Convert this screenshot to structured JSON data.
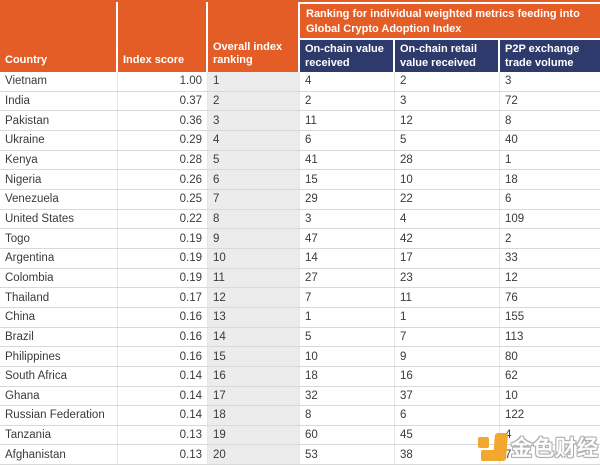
{
  "colors": {
    "header_orange": "#E55D26",
    "header_navy": "#2D3A6B",
    "rank_column_bg": "#ECECEC",
    "watermark_orange": "#F2A21F"
  },
  "table": {
    "header": {
      "country": "Country",
      "index_score": "Index score",
      "overall_ranking": "Overall index ranking",
      "metrics_group": "Ranking for individual weighted metrics feeding into Global Crypto Adoption Index",
      "on_chain_value": "On-chain value received",
      "on_chain_retail": "On-chain retail value received",
      "p2p_volume": "P2P exchange trade volume"
    },
    "rows": [
      {
        "country": "Vietnam",
        "score": "1.00",
        "rank": "1",
        "on_chain_value": "4",
        "on_chain_retail": "2",
        "p2p": "3"
      },
      {
        "country": "India",
        "score": "0.37",
        "rank": "2",
        "on_chain_value": "2",
        "on_chain_retail": "3",
        "p2p": "72"
      },
      {
        "country": "Pakistan",
        "score": "0.36",
        "rank": "3",
        "on_chain_value": "11",
        "on_chain_retail": "12",
        "p2p": "8"
      },
      {
        "country": "Ukraine",
        "score": "0.29",
        "rank": "4",
        "on_chain_value": "6",
        "on_chain_retail": "5",
        "p2p": "40"
      },
      {
        "country": "Kenya",
        "score": "0.28",
        "rank": "5",
        "on_chain_value": "41",
        "on_chain_retail": "28",
        "p2p": "1"
      },
      {
        "country": "Nigeria",
        "score": "0.26",
        "rank": "6",
        "on_chain_value": "15",
        "on_chain_retail": "10",
        "p2p": "18"
      },
      {
        "country": "Venezuela",
        "score": "0.25",
        "rank": "7",
        "on_chain_value": "29",
        "on_chain_retail": "22",
        "p2p": "6"
      },
      {
        "country": "United States",
        "score": "0.22",
        "rank": "8",
        "on_chain_value": "3",
        "on_chain_retail": "4",
        "p2p": "109"
      },
      {
        "country": "Togo",
        "score": "0.19",
        "rank": "9",
        "on_chain_value": "47",
        "on_chain_retail": "42",
        "p2p": "2"
      },
      {
        "country": "Argentina",
        "score": "0.19",
        "rank": "10",
        "on_chain_value": "14",
        "on_chain_retail": "17",
        "p2p": "33"
      },
      {
        "country": "Colombia",
        "score": "0.19",
        "rank": "11",
        "on_chain_value": "27",
        "on_chain_retail": "23",
        "p2p": "12"
      },
      {
        "country": "Thailand",
        "score": "0.17",
        "rank": "12",
        "on_chain_value": "7",
        "on_chain_retail": "11",
        "p2p": "76"
      },
      {
        "country": "China",
        "score": "0.16",
        "rank": "13",
        "on_chain_value": "1",
        "on_chain_retail": "1",
        "p2p": "155"
      },
      {
        "country": "Brazil",
        "score": "0.16",
        "rank": "14",
        "on_chain_value": "5",
        "on_chain_retail": "7",
        "p2p": "113"
      },
      {
        "country": "Philippines",
        "score": "0.16",
        "rank": "15",
        "on_chain_value": "10",
        "on_chain_retail": "9",
        "p2p": "80"
      },
      {
        "country": "South Africa",
        "score": "0.14",
        "rank": "16",
        "on_chain_value": "18",
        "on_chain_retail": "16",
        "p2p": "62"
      },
      {
        "country": "Ghana",
        "score": "0.14",
        "rank": "17",
        "on_chain_value": "32",
        "on_chain_retail": "37",
        "p2p": "10"
      },
      {
        "country": "Russian Federation",
        "score": "0.14",
        "rank": "18",
        "on_chain_value": "8",
        "on_chain_retail": "6",
        "p2p": "122"
      },
      {
        "country": "Tanzania",
        "score": "0.13",
        "rank": "19",
        "on_chain_value": "60",
        "on_chain_retail": "45",
        "p2p": "4"
      },
      {
        "country": "Afghanistan",
        "score": "0.13",
        "rank": "20",
        "on_chain_value": "53",
        "on_chain_retail": "38",
        "p2p": "7"
      }
    ]
  },
  "watermark": {
    "text": "金色财经"
  },
  "chart_data": {
    "type": "table",
    "title": "Ranking for individual weighted metrics feeding into Global Crypto Adoption Index",
    "columns": [
      "Country",
      "Index score",
      "Overall index ranking",
      "On-chain value received",
      "On-chain retail value received",
      "P2P exchange trade volume"
    ],
    "rows": [
      [
        "Vietnam",
        1.0,
        1,
        4,
        2,
        3
      ],
      [
        "India",
        0.37,
        2,
        2,
        3,
        72
      ],
      [
        "Pakistan",
        0.36,
        3,
        11,
        12,
        8
      ],
      [
        "Ukraine",
        0.29,
        4,
        6,
        5,
        40
      ],
      [
        "Kenya",
        0.28,
        5,
        41,
        28,
        1
      ],
      [
        "Nigeria",
        0.26,
        6,
        15,
        10,
        18
      ],
      [
        "Venezuela",
        0.25,
        7,
        29,
        22,
        6
      ],
      [
        "United States",
        0.22,
        8,
        3,
        4,
        109
      ],
      [
        "Togo",
        0.19,
        9,
        47,
        42,
        2
      ],
      [
        "Argentina",
        0.19,
        10,
        14,
        17,
        33
      ],
      [
        "Colombia",
        0.19,
        11,
        27,
        23,
        12
      ],
      [
        "Thailand",
        0.17,
        12,
        7,
        11,
        76
      ],
      [
        "China",
        0.16,
        13,
        1,
        1,
        155
      ],
      [
        "Brazil",
        0.16,
        14,
        5,
        7,
        113
      ],
      [
        "Philippines",
        0.16,
        15,
        10,
        9,
        80
      ],
      [
        "South Africa",
        0.14,
        16,
        18,
        16,
        62
      ],
      [
        "Ghana",
        0.14,
        17,
        32,
        37,
        10
      ],
      [
        "Russian Federation",
        0.14,
        18,
        8,
        6,
        122
      ],
      [
        "Tanzania",
        0.13,
        19,
        60,
        45,
        4
      ],
      [
        "Afghanistan",
        0.13,
        20,
        53,
        38,
        7
      ]
    ]
  }
}
